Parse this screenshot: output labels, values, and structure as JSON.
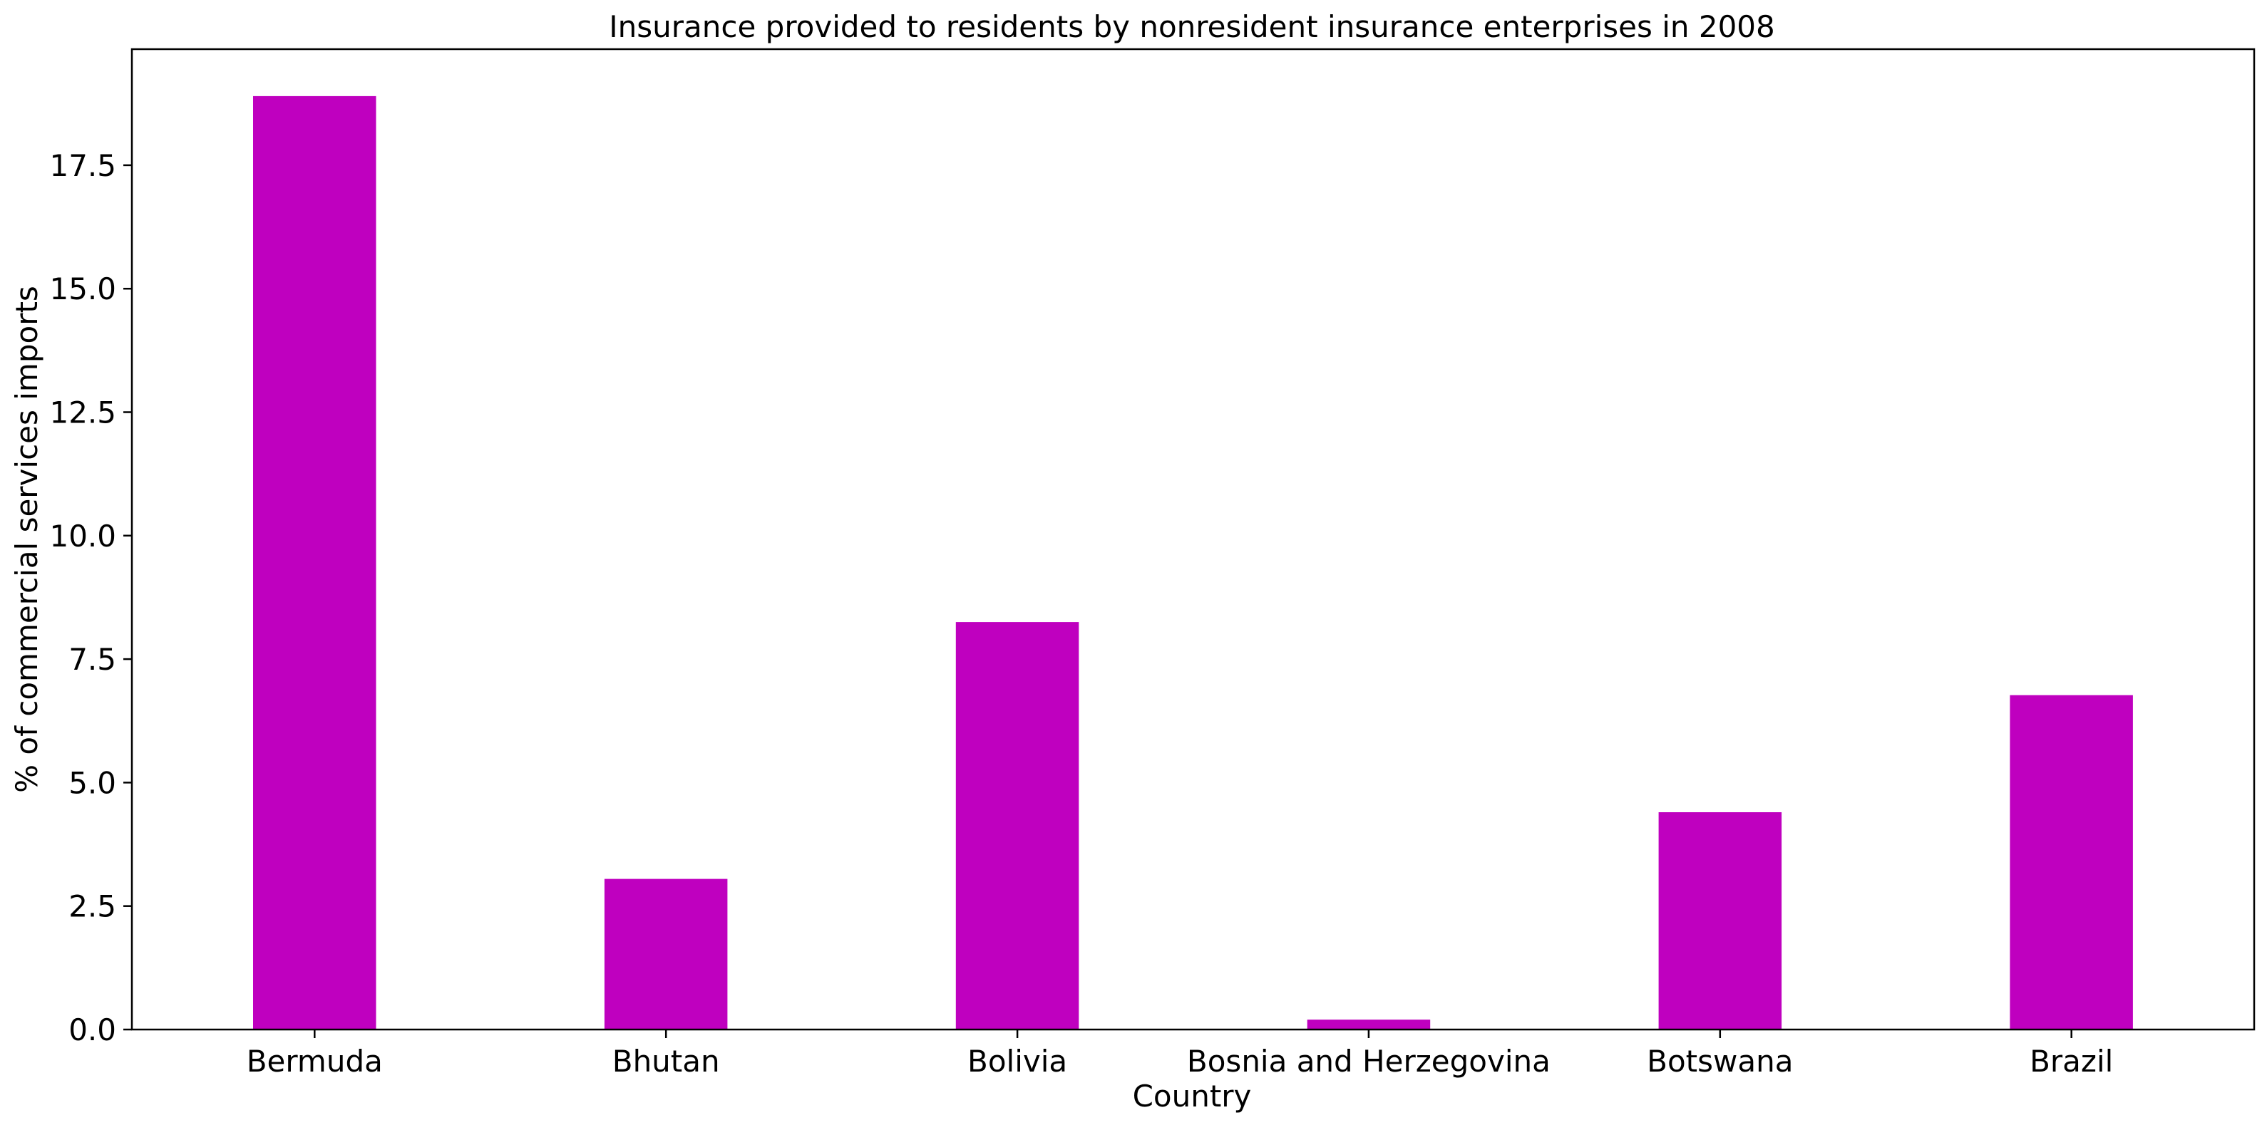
{
  "chart_data": {
    "type": "bar",
    "title": "Insurance provided to residents by nonresident insurance enterprises in 2008",
    "xlabel": "Country",
    "ylabel": "% of commercial services imports",
    "categories": [
      "Bermuda",
      "Bhutan",
      "Bolivia",
      "Bosnia and Herzegovina",
      "Botswana",
      "Brazil"
    ],
    "values": [
      18.9,
      3.05,
      8.25,
      0.2,
      4.4,
      6.77
    ],
    "ylim": [
      0,
      19.85
    ],
    "yticks": [
      0.0,
      2.5,
      5.0,
      7.5,
      10.0,
      12.5,
      15.0,
      17.5
    ],
    "ytick_labels": [
      "0.0",
      "2.5",
      "5.0",
      "7.5",
      "10.0",
      "12.5",
      "15.0",
      "17.5"
    ],
    "bar_color": "#bf00bf",
    "grid": false,
    "legend": "none"
  }
}
